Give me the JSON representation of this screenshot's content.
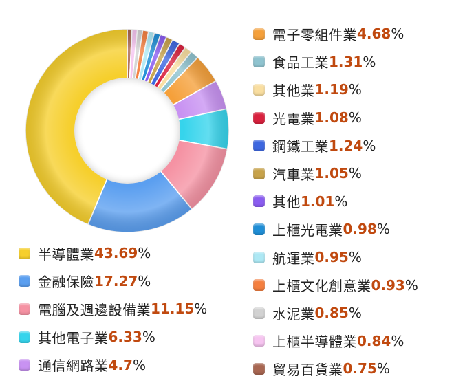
{
  "chart_data": {
    "type": "pie",
    "style": "donut",
    "unit": "%",
    "slices": [
      {
        "label": "半導體業",
        "value": 43.69,
        "color": "#f6cf2c"
      },
      {
        "label": "金融保險",
        "value": 17.27,
        "color": "#5b9ff0"
      },
      {
        "label": "電腦及週邊設備業",
        "value": 11.15,
        "color": "#f592a3"
      },
      {
        "label": "其他電子業",
        "value": 6.33,
        "color": "#36d4ec"
      },
      {
        "label": "通信網路業",
        "value": 4.7,
        "color": "#c892f2"
      },
      {
        "label": "電子零組件業",
        "value": 4.68,
        "color": "#f5a03a"
      },
      {
        "label": "食品工業",
        "value": 1.31,
        "color": "#8fc3cf"
      },
      {
        "label": "其他業",
        "value": 1.19,
        "color": "#f9dea0"
      },
      {
        "label": "光電業",
        "value": 1.08,
        "color": "#d9213e"
      },
      {
        "label": "鋼鐵工業",
        "value": 1.24,
        "color": "#3d67e0"
      },
      {
        "label": "汽車業",
        "value": 1.05,
        "color": "#c7a24a"
      },
      {
        "label": "其他",
        "value": 1.01,
        "color": "#8a5cf0"
      },
      {
        "label": "上櫃光電業",
        "value": 0.98,
        "color": "#1f8ed6"
      },
      {
        "label": "航運業",
        "value": 0.95,
        "color": "#ade8f4"
      },
      {
        "label": "上櫃文化創意業",
        "value": 0.93,
        "color": "#f57f3f"
      },
      {
        "label": "水泥業",
        "value": 0.85,
        "color": "#d2d2d2"
      },
      {
        "label": "上櫃半導體業",
        "value": 0.84,
        "color": "#f6c4f0"
      },
      {
        "label": "貿易百貨業",
        "value": 0.75,
        "color": "#a86651"
      }
    ],
    "value_labels": [
      "43.69",
      "17.27",
      "11.15",
      "6.33",
      "4.7",
      "4.68",
      "1.31",
      "1.19",
      "1.08",
      "1.24",
      "1.05",
      "1.01",
      "0.98",
      "0.95",
      "0.93",
      "0.85",
      "0.84",
      "0.75"
    ],
    "legend_placement": "right-and-bottom-left"
  }
}
